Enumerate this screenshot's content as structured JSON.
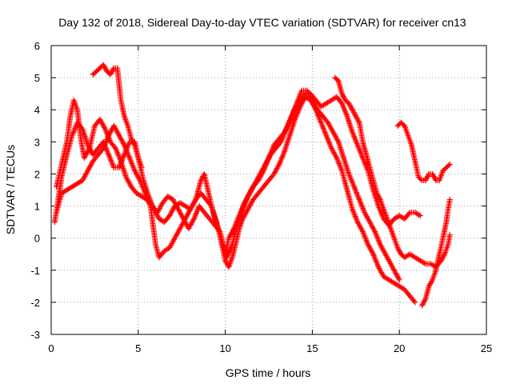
{
  "chart_data": {
    "type": "scatter",
    "title": "Day 132 of 2018, Sidereal Day-to-day VTEC variation (SDTVAR) for receiver cn13",
    "xlabel": "GPS time / hours",
    "ylabel": "SDTVAR / TECUs",
    "xlim": [
      0,
      25
    ],
    "ylim": [
      -3,
      6
    ],
    "xticks": [
      "0",
      "5",
      "10",
      "15",
      "20",
      "25"
    ],
    "yticks": [
      "-3",
      "-2",
      "-1",
      "0",
      "1",
      "2",
      "3",
      "4",
      "5",
      "6"
    ],
    "grid": true,
    "marker": "+",
    "color": "#ff0000",
    "series": [
      {
        "points": [
          [
            0.2,
            0.5
          ],
          [
            0.4,
            1.2
          ],
          [
            0.6,
            1.9
          ],
          [
            0.9,
            2.6
          ],
          [
            1.2,
            3.2
          ],
          [
            1.5,
            3.6
          ],
          [
            1.8,
            3.4
          ],
          [
            2.1,
            2.9
          ],
          [
            2.4,
            2.6
          ],
          [
            2.7,
            2.8
          ],
          [
            3.0,
            3.0
          ],
          [
            3.3,
            2.6
          ],
          [
            3.6,
            2.2
          ],
          [
            3.9,
            2.2
          ],
          [
            4.2,
            2.6
          ],
          [
            4.5,
            3.0
          ],
          [
            4.8,
            3.0
          ],
          [
            5.0,
            2.5
          ],
          [
            5.3,
            1.8
          ],
          [
            5.6,
            1.3
          ],
          [
            5.9,
            0.9
          ],
          [
            6.2,
            0.6
          ],
          [
            6.5,
            0.5
          ],
          [
            6.8,
            0.7
          ],
          [
            7.1,
            1.0
          ],
          [
            7.4,
            1.1
          ],
          [
            7.7,
            1.0
          ],
          [
            8.0,
            0.9
          ],
          [
            8.3,
            1.2
          ],
          [
            8.6,
            1.8
          ],
          [
            8.8,
            2.0
          ],
          [
            9.0,
            1.5
          ],
          [
            9.3,
            0.8
          ],
          [
            9.6,
            0.3
          ],
          [
            9.8,
            -0.2
          ],
          [
            10.0,
            -0.7
          ],
          [
            10.2,
            -0.9
          ],
          [
            10.4,
            -0.6
          ],
          [
            10.6,
            -0.2
          ],
          [
            10.8,
            0.3
          ],
          [
            11.0,
            0.6
          ],
          [
            11.3,
            0.9
          ],
          [
            11.6,
            1.2
          ],
          [
            11.9,
            1.4
          ],
          [
            12.2,
            1.6
          ],
          [
            12.5,
            1.8
          ],
          [
            12.8,
            2.0
          ],
          [
            13.1,
            2.3
          ],
          [
            13.4,
            2.7
          ],
          [
            13.7,
            3.2
          ],
          [
            14.0,
            3.7
          ],
          [
            14.3,
            4.1
          ],
          [
            14.6,
            4.4
          ],
          [
            14.9,
            4.3
          ],
          [
            15.2,
            4.0
          ],
          [
            15.5,
            3.6
          ],
          [
            15.8,
            3.2
          ],
          [
            16.1,
            2.8
          ],
          [
            16.4,
            2.5
          ],
          [
            16.7,
            2.1
          ],
          [
            17.0,
            1.5
          ],
          [
            17.3,
            0.9
          ],
          [
            17.6,
            0.5
          ],
          [
            17.9,
            0.2
          ],
          [
            18.2,
            -0.2
          ],
          [
            18.5,
            -0.5
          ],
          [
            18.8,
            -0.9
          ],
          [
            19.1,
            -1.2
          ],
          [
            19.4,
            -1.3
          ],
          [
            19.7,
            -1.4
          ],
          [
            20.0,
            -1.5
          ],
          [
            20.3,
            -1.6
          ],
          [
            20.6,
            -1.8
          ],
          [
            20.9,
            -2.0
          ]
        ]
      },
      {
        "points": [
          [
            0.3,
            1.6
          ],
          [
            0.6,
            2.3
          ],
          [
            0.9,
            3.0
          ],
          [
            1.1,
            3.8
          ],
          [
            1.3,
            4.3
          ],
          [
            1.5,
            4.0
          ],
          [
            1.7,
            3.1
          ],
          [
            1.9,
            2.5
          ],
          [
            2.2,
            2.8
          ],
          [
            2.5,
            3.5
          ],
          [
            2.8,
            3.7
          ],
          [
            3.1,
            3.4
          ],
          [
            3.4,
            3.0
          ],
          [
            3.7,
            2.8
          ],
          [
            4.0,
            2.4
          ],
          [
            4.3,
            1.9
          ],
          [
            4.6,
            1.6
          ],
          [
            4.9,
            1.4
          ],
          [
            5.2,
            1.3
          ],
          [
            5.5,
            1.2
          ],
          [
            5.8,
            1.0
          ],
          [
            6.1,
            0.8
          ],
          [
            6.4,
            1.1
          ],
          [
            6.7,
            1.3
          ],
          [
            7.0,
            1.2
          ],
          [
            7.3,
            0.9
          ],
          [
            7.6,
            0.6
          ],
          [
            7.9,
            0.3
          ],
          [
            8.2,
            0.6
          ],
          [
            8.5,
            1.0
          ],
          [
            8.8,
            0.8
          ],
          [
            9.1,
            0.6
          ],
          [
            9.4,
            0.4
          ],
          [
            9.7,
            0.2
          ],
          [
            10.0,
            -0.5
          ],
          [
            10.2,
            0.0
          ],
          [
            10.5,
            0.3
          ],
          [
            10.8,
            0.7
          ],
          [
            11.1,
            1.1
          ],
          [
            11.4,
            1.4
          ],
          [
            11.7,
            1.7
          ],
          [
            12.0,
            2.0
          ],
          [
            12.3,
            2.3
          ],
          [
            12.6,
            2.6
          ],
          [
            12.9,
            2.8
          ],
          [
            13.2,
            3.0
          ],
          [
            13.5,
            3.4
          ],
          [
            13.8,
            3.8
          ],
          [
            14.1,
            4.2
          ],
          [
            14.4,
            4.6
          ],
          [
            14.7,
            4.6
          ],
          [
            15.0,
            4.3
          ],
          [
            15.3,
            4.0
          ],
          [
            15.6,
            3.8
          ],
          [
            15.9,
            3.6
          ],
          [
            16.2,
            3.3
          ],
          [
            16.5,
            3.0
          ],
          [
            16.8,
            2.5
          ],
          [
            17.1,
            2.0
          ],
          [
            17.4,
            1.6
          ],
          [
            17.7,
            1.2
          ],
          [
            18.0,
            0.8
          ],
          [
            18.3,
            0.5
          ],
          [
            18.6,
            0.2
          ],
          [
            18.9,
            -0.2
          ],
          [
            19.2,
            -0.5
          ],
          [
            19.5,
            -0.8
          ],
          [
            19.8,
            -1.1
          ],
          [
            20.0,
            -1.3
          ]
        ]
      },
      {
        "points": [
          [
            0.3,
            0.8
          ],
          [
            0.6,
            1.4
          ],
          [
            0.9,
            1.5
          ],
          [
            1.2,
            1.6
          ],
          [
            1.5,
            1.7
          ],
          [
            1.8,
            1.8
          ],
          [
            2.1,
            2.1
          ],
          [
            2.4,
            2.4
          ],
          [
            2.7,
            2.6
          ],
          [
            3.0,
            2.8
          ],
          [
            3.3,
            3.2
          ],
          [
            3.6,
            3.5
          ],
          [
            3.9,
            3.2
          ],
          [
            4.2,
            2.9
          ],
          [
            4.5,
            2.5
          ],
          [
            4.8,
            2.1
          ],
          [
            5.1,
            1.8
          ],
          [
            5.4,
            1.4
          ],
          [
            5.7,
            1.0
          ],
          [
            6.0,
            -0.2
          ],
          [
            6.2,
            -0.6
          ],
          [
            6.5,
            -0.4
          ],
          [
            6.8,
            -0.3
          ],
          [
            7.1,
            0.0
          ],
          [
            7.4,
            0.3
          ],
          [
            7.7,
            0.6
          ],
          [
            8.0,
            0.9
          ],
          [
            8.3,
            1.2
          ],
          [
            8.6,
            1.4
          ],
          [
            8.9,
            1.2
          ],
          [
            9.2,
            1.0
          ],
          [
            9.5,
            0.5
          ],
          [
            9.8,
            -0.1
          ],
          [
            10.1,
            -0.6
          ],
          [
            10.4,
            -0.2
          ],
          [
            10.7,
            0.4
          ],
          [
            11.0,
            0.9
          ],
          [
            11.3,
            1.3
          ],
          [
            11.6,
            1.6
          ],
          [
            11.9,
            1.8
          ],
          [
            12.2,
            2.1
          ],
          [
            12.5,
            2.5
          ],
          [
            12.8,
            2.9
          ],
          [
            13.1,
            3.1
          ],
          [
            13.4,
            3.3
          ],
          [
            13.7,
            3.6
          ],
          [
            14.0,
            4.0
          ],
          [
            14.3,
            4.3
          ],
          [
            14.6,
            4.5
          ],
          [
            14.9,
            4.5
          ],
          [
            15.2,
            4.3
          ],
          [
            15.5,
            4.1
          ],
          [
            15.8,
            4.2
          ],
          [
            16.1,
            4.3
          ],
          [
            16.4,
            4.4
          ],
          [
            16.7,
            4.2
          ],
          [
            17.0,
            3.8
          ],
          [
            17.3,
            3.3
          ],
          [
            17.6,
            2.9
          ],
          [
            17.9,
            2.5
          ],
          [
            18.2,
            2.1
          ],
          [
            18.5,
            1.5
          ],
          [
            18.8,
            1.0
          ],
          [
            19.1,
            0.6
          ],
          [
            19.4,
            0.4
          ],
          [
            19.7,
            0.6
          ],
          [
            20.0,
            0.7
          ],
          [
            20.3,
            0.6
          ],
          [
            20.6,
            0.8
          ],
          [
            20.9,
            0.8
          ],
          [
            21.2,
            0.7
          ]
        ]
      },
      {
        "points": [
          [
            2.4,
            5.1
          ],
          [
            2.6,
            5.2
          ],
          [
            2.8,
            5.3
          ],
          [
            3.0,
            5.4
          ],
          [
            3.2,
            5.2
          ],
          [
            3.4,
            5.1
          ],
          [
            3.6,
            5.3
          ],
          [
            3.8,
            5.3
          ],
          [
            4.0,
            4.3
          ],
          [
            4.2,
            3.8
          ],
          [
            4.4,
            3.5
          ],
          [
            4.6,
            3.1
          ],
          [
            4.8,
            2.9
          ],
          [
            5.0,
            2.5
          ],
          [
            5.2,
            2.2
          ]
        ]
      },
      {
        "points": [
          [
            16.3,
            5.0
          ],
          [
            16.5,
            4.9
          ],
          [
            16.7,
            4.5
          ],
          [
            16.9,
            4.3
          ],
          [
            17.1,
            4.2
          ],
          [
            17.3,
            4.0
          ],
          [
            17.5,
            3.8
          ],
          [
            17.7,
            3.6
          ],
          [
            17.9,
            3.0
          ],
          [
            18.1,
            2.6
          ],
          [
            18.3,
            2.2
          ],
          [
            18.5,
            1.8
          ],
          [
            18.7,
            1.4
          ],
          [
            18.9,
            1.2
          ],
          [
            19.1,
            0.9
          ],
          [
            19.3,
            0.6
          ],
          [
            19.5,
            0.3
          ],
          [
            19.7,
            0.0
          ],
          [
            19.9,
            -0.3
          ],
          [
            20.1,
            -0.5
          ],
          [
            20.3,
            -0.6
          ],
          [
            20.6,
            -0.5
          ],
          [
            20.9,
            -0.6
          ],
          [
            21.2,
            -0.7
          ],
          [
            21.5,
            -0.8
          ],
          [
            21.8,
            -0.8
          ],
          [
            22.1,
            -0.9
          ],
          [
            22.4,
            -0.7
          ],
          [
            22.6,
            -0.5
          ],
          [
            22.8,
            -0.2
          ],
          [
            22.9,
            0.1
          ]
        ]
      },
      {
        "points": [
          [
            19.9,
            3.5
          ],
          [
            20.1,
            3.6
          ],
          [
            20.3,
            3.5
          ],
          [
            20.5,
            3.2
          ],
          [
            20.7,
            2.9
          ],
          [
            20.9,
            2.4
          ],
          [
            21.1,
            1.9
          ],
          [
            21.3,
            1.8
          ],
          [
            21.5,
            1.8
          ],
          [
            21.7,
            2.0
          ],
          [
            21.9,
            2.0
          ],
          [
            22.1,
            1.8
          ],
          [
            22.3,
            1.8
          ],
          [
            22.5,
            2.1
          ],
          [
            22.7,
            2.2
          ],
          [
            22.9,
            2.3
          ]
        ]
      },
      {
        "points": [
          [
            21.3,
            -2.1
          ],
          [
            21.5,
            -1.9
          ],
          [
            21.7,
            -1.5
          ],
          [
            21.9,
            -1.3
          ],
          [
            22.1,
            -1.0
          ],
          [
            22.3,
            -0.5
          ],
          [
            22.5,
            0.0
          ],
          [
            22.7,
            0.5
          ],
          [
            22.8,
            0.9
          ],
          [
            22.9,
            1.2
          ]
        ]
      }
    ]
  }
}
